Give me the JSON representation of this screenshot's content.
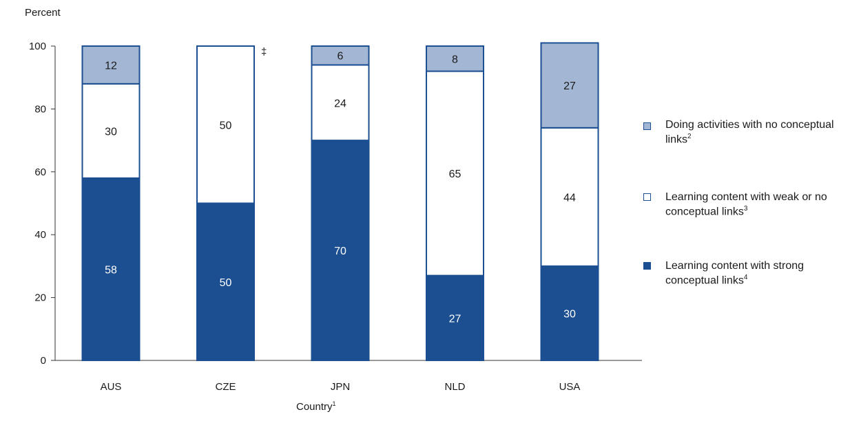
{
  "chart_data": {
    "type": "bar",
    "stacked": true,
    "ylabel": "Percent",
    "xlabel": "Country",
    "xlabel_note": "1",
    "ylim": [
      0,
      100
    ],
    "yticks": [
      0,
      20,
      40,
      60,
      80,
      100
    ],
    "categories": [
      "AUS",
      "CZE",
      "JPN",
      "NLD",
      "USA"
    ],
    "series": [
      {
        "name": "Learning content with strong conceptual links",
        "note": "4",
        "color": "#1b4f91",
        "label_color": "#ffffff",
        "values": [
          58,
          50,
          70,
          27,
          30
        ]
      },
      {
        "name": "Learning content with weak or no conceptual links",
        "note": "3",
        "color": "#ffffff",
        "label_color": "#1a1a1a",
        "values": [
          30,
          50,
          24,
          65,
          44
        ]
      },
      {
        "name": "Doing activities with no conceptual links",
        "note": "2",
        "color": "#a3b6d3",
        "label_color": "#1a1a1a",
        "values": [
          12,
          null,
          6,
          8,
          27
        ]
      }
    ],
    "annotations": [
      {
        "category": "CZE",
        "text": "‡"
      }
    ],
    "legend_position": "right"
  }
}
